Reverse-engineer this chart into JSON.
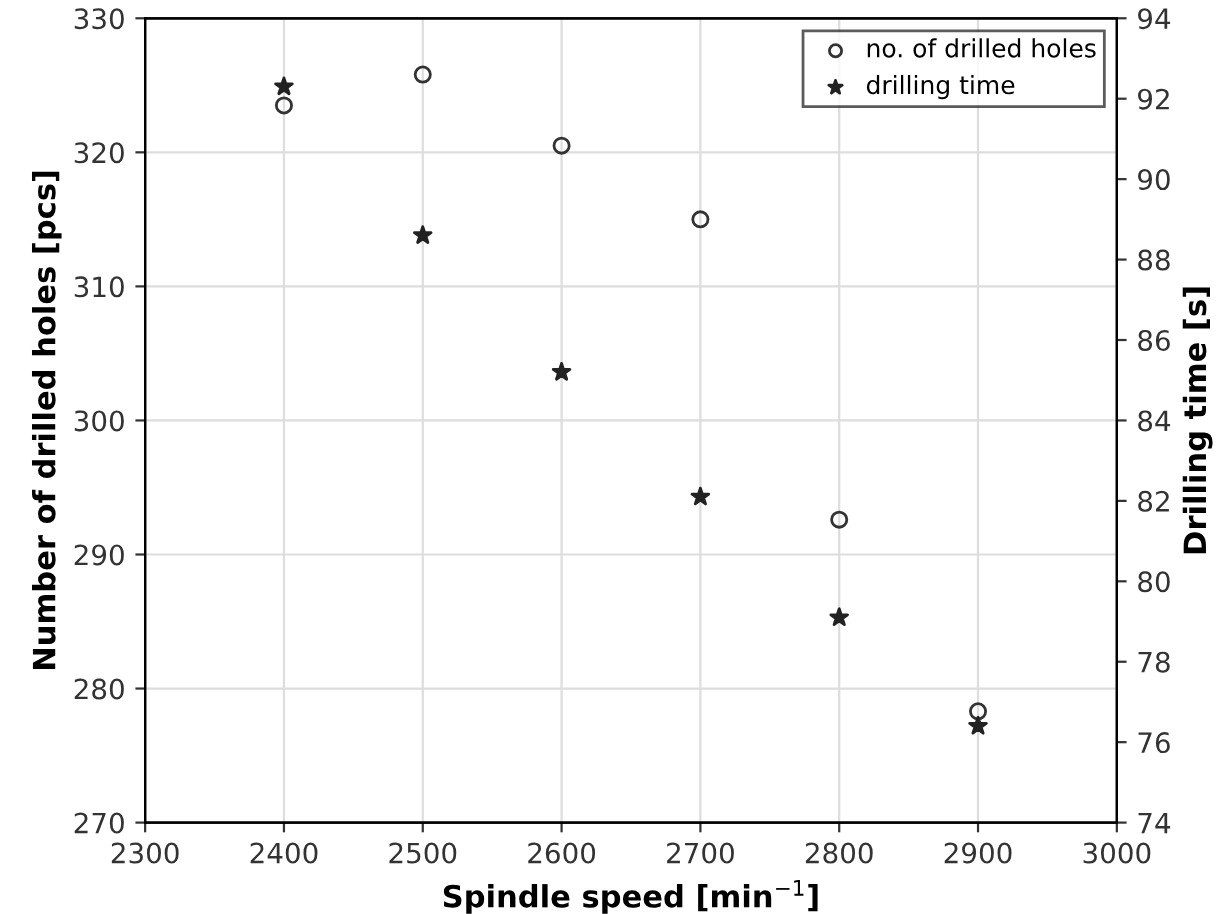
{
  "chart_data": {
    "type": "scatter",
    "xlabel": "Spindle speed [min$^{−1}$]",
    "ylabel": "Number of drilled holes [pcs]",
    "y2label": "Drilling time [s]",
    "x": [
      2400,
      2500,
      2600,
      2700,
      2800,
      2900
    ],
    "series": [
      {
        "name": "no. of drilled holes",
        "color": "#333333",
        "marker": "circle",
        "values": [
          323.5,
          325.8,
          320.5,
          315.0,
          292.6,
          278.3
        ]
      },
      {
        "name": "drilling time",
        "color": "#222222",
        "marker": "star",
        "axis": "y2",
        "values": [
          92.3,
          88.6,
          85.2,
          82.1,
          79.1,
          76.4
        ]
      }
    ],
    "xlim": [
      2300,
      3000
    ],
    "xticks": [
      2300,
      2400,
      2500,
      2600,
      2700,
      2800,
      2900,
      3000
    ],
    "ylim": [
      270,
      330
    ],
    "yticks": [
      270,
      280,
      290,
      300,
      310,
      320,
      330
    ],
    "y2lim": [
      74,
      94
    ],
    "y2ticks": [
      74,
      76,
      78,
      80,
      82,
      84,
      86,
      88,
      90,
      92,
      94
    ],
    "grid": true,
    "legend": "top right"
  }
}
